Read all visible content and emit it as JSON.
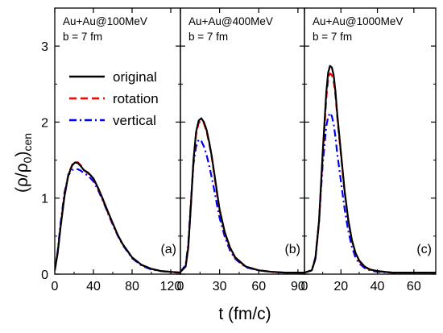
{
  "chart_data": {
    "type": "line",
    "ylabel": "(ρ/ρ₀)cen",
    "ylabel_parts": {
      "main": "(ρ/ρ",
      "sub0": "0",
      "close": ")",
      "sub": "cen"
    },
    "xlabel": "t (fm/c)",
    "ylim": [
      0,
      3.5
    ],
    "yticks": [
      0,
      1,
      2,
      3
    ],
    "grid": false,
    "legend": {
      "placement": "upper-left of panel (a)",
      "entries": [
        {
          "name": "original",
          "color": "#000000",
          "style": "solid"
        },
        {
          "name": "rotation",
          "color": "#ff0000",
          "style": "dash"
        },
        {
          "name": "vertical",
          "color": "#0000ff",
          "style": "dashdot"
        }
      ]
    },
    "panels": [
      {
        "tag": "(a)",
        "title": "Au+Au@100MeV",
        "subtitle": "b = 7 fm",
        "xlim": [
          0,
          130
        ],
        "xticks": [
          0,
          40,
          80,
          120
        ],
        "series": [
          {
            "name": "original",
            "x": [
              0,
              3,
              6,
              10,
              14,
              18,
              21,
              24,
              27,
              30,
              35,
              40,
              45,
              50,
              55,
              60,
              65,
              70,
              80,
              90,
              100,
              110,
              120,
              130
            ],
            "y": [
              0.05,
              0.28,
              0.62,
              1.02,
              1.3,
              1.43,
              1.47,
              1.46,
              1.42,
              1.37,
              1.33,
              1.26,
              1.13,
              0.98,
              0.82,
              0.67,
              0.52,
              0.4,
              0.22,
              0.12,
              0.07,
              0.04,
              0.03,
              0.02
            ]
          },
          {
            "name": "rotation",
            "x": [
              0,
              3,
              6,
              10,
              14,
              18,
              21,
              24,
              27,
              30,
              35,
              40,
              45,
              50,
              55,
              60,
              65,
              70,
              80,
              90,
              100,
              110,
              120,
              130
            ],
            "y": [
              0.05,
              0.28,
              0.63,
              1.03,
              1.31,
              1.44,
              1.48,
              1.47,
              1.43,
              1.37,
              1.32,
              1.25,
              1.12,
              0.97,
              0.81,
              0.66,
              0.52,
              0.4,
              0.22,
              0.12,
              0.07,
              0.04,
              0.03,
              0.02
            ]
          },
          {
            "name": "vertical",
            "x": [
              0,
              3,
              6,
              10,
              14,
              18,
              21,
              24,
              27,
              30,
              35,
              40,
              45,
              50,
              55,
              60,
              65,
              70,
              80,
              90,
              100,
              110,
              120,
              130
            ],
            "y": [
              0.05,
              0.3,
              0.67,
              1.07,
              1.3,
              1.37,
              1.38,
              1.38,
              1.36,
              1.33,
              1.29,
              1.22,
              1.1,
              0.96,
              0.8,
              0.65,
              0.51,
              0.39,
              0.21,
              0.11,
              0.06,
              0.04,
              0.03,
              0.02
            ]
          }
        ]
      },
      {
        "tag": "(b)",
        "title": "Au+Au@400MeV",
        "subtitle": "b = 7 fm",
        "xlim": [
          0,
          95
        ],
        "xticks": [
          0,
          30,
          60,
          90
        ],
        "series": [
          {
            "name": "original",
            "x": [
              0,
              4,
              6,
              8,
              10,
              12,
              14,
              16,
              18,
              20,
              22,
              24,
              26,
              28,
              30,
              34,
              38,
              42,
              50,
              60,
              70,
              80,
              95
            ],
            "y": [
              0.03,
              0.1,
              0.35,
              0.9,
              1.5,
              1.87,
              2.02,
              2.05,
              2.0,
              1.9,
              1.74,
              1.55,
              1.32,
              1.08,
              0.85,
              0.55,
              0.35,
              0.22,
              0.1,
              0.05,
              0.03,
              0.02,
              0.02
            ]
          },
          {
            "name": "rotation",
            "x": [
              0,
              4,
              6,
              8,
              10,
              12,
              14,
              16,
              18,
              20,
              22,
              24,
              26,
              28,
              30,
              34,
              38,
              42,
              50,
              60,
              70,
              80,
              95
            ],
            "y": [
              0.03,
              0.1,
              0.35,
              0.9,
              1.48,
              1.84,
              1.99,
              2.02,
              1.98,
              1.88,
              1.72,
              1.53,
              1.3,
              1.06,
              0.84,
              0.54,
              0.34,
              0.21,
              0.1,
              0.05,
              0.03,
              0.02,
              0.02
            ]
          },
          {
            "name": "vertical",
            "x": [
              0,
              4,
              6,
              8,
              10,
              12,
              14,
              16,
              18,
              20,
              22,
              24,
              26,
              28,
              30,
              34,
              38,
              42,
              50,
              60,
              70,
              80,
              95
            ],
            "y": [
              0.03,
              0.12,
              0.4,
              0.95,
              1.45,
              1.68,
              1.77,
              1.75,
              1.68,
              1.57,
              1.43,
              1.27,
              1.1,
              0.91,
              0.74,
              0.49,
              0.31,
              0.2,
              0.09,
              0.05,
              0.03,
              0.02,
              0.02
            ]
          }
        ]
      },
      {
        "tag": "(c)",
        "title": "Au+Au@1000MeV",
        "subtitle": "b = 7 fm",
        "xlim": [
          0,
          72
        ],
        "xticks": [
          0,
          20,
          40,
          60
        ],
        "series": [
          {
            "name": "original",
            "x": [
              0,
              4,
              6,
              8,
              10,
              12,
              13,
              14,
              15,
              16,
              17,
              18,
              20,
              22,
              24,
              26,
              28,
              30,
              33,
              36,
              40,
              48,
              56,
              72
            ],
            "y": [
              0.02,
              0.05,
              0.2,
              0.7,
              1.6,
              2.4,
              2.65,
              2.74,
              2.72,
              2.62,
              2.4,
              2.1,
              1.6,
              1.1,
              0.72,
              0.45,
              0.28,
              0.18,
              0.1,
              0.06,
              0.04,
              0.02,
              0.02,
              0.02
            ]
          },
          {
            "name": "rotation",
            "x": [
              0,
              4,
              6,
              8,
              10,
              12,
              13,
              14,
              15,
              16,
              17,
              18,
              20,
              22,
              24,
              26,
              28,
              30,
              33,
              36,
              40,
              48,
              56,
              72
            ],
            "y": [
              0.02,
              0.05,
              0.2,
              0.68,
              1.55,
              2.32,
              2.56,
              2.64,
              2.62,
              2.54,
              2.35,
              2.06,
              1.57,
              1.08,
              0.71,
              0.44,
              0.27,
              0.17,
              0.09,
              0.06,
              0.04,
              0.02,
              0.02,
              0.02
            ]
          },
          {
            "name": "vertical",
            "x": [
              0,
              4,
              6,
              8,
              10,
              12,
              13,
              14,
              15,
              16,
              17,
              18,
              20,
              22,
              24,
              26,
              28,
              30,
              33,
              36,
              40,
              48,
              56,
              72
            ],
            "y": [
              0.02,
              0.05,
              0.22,
              0.7,
              1.45,
              1.95,
              2.07,
              2.12,
              2.08,
              1.98,
              1.8,
              1.58,
              1.22,
              0.86,
              0.57,
              0.36,
              0.22,
              0.14,
              0.08,
              0.05,
              0.03,
              0.02,
              0.02,
              0.02
            ]
          }
        ]
      }
    ]
  }
}
